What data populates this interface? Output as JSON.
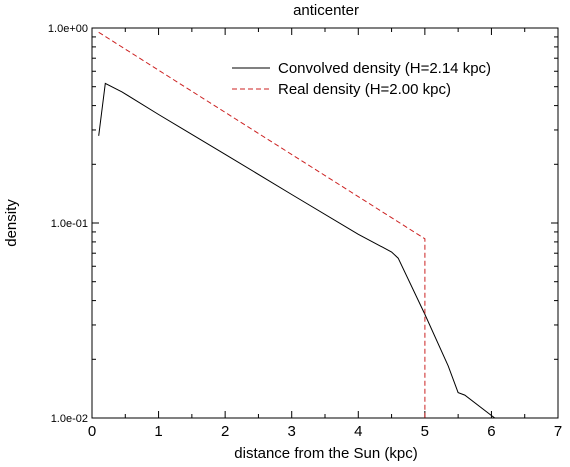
{
  "chart_data": {
    "type": "line",
    "title": "anticenter",
    "xlabel": "distance from the Sun (kpc)",
    "ylabel": "density",
    "xlim": [
      0,
      7
    ],
    "ylim": [
      0.01,
      1.0
    ],
    "yscale": "log",
    "grid": false,
    "legend_position": "top-right",
    "x_ticks": [
      0,
      1,
      2,
      3,
      4,
      5,
      6,
      7
    ],
    "x_tick_labels": [
      "0",
      "1",
      "2",
      "3",
      "4",
      "5",
      "6",
      "7"
    ],
    "y_ticks": [
      0.01,
      0.1,
      1.0
    ],
    "y_tick_labels": [
      "1.0e-02",
      "1.0e-01",
      "1.0e+00"
    ],
    "series": [
      {
        "name": "Convolved density (H=2.14 kpc)",
        "color": "#000000",
        "dash": "solid",
        "x": [
          0.1,
          0.2,
          0.45,
          1.0,
          2.0,
          3.0,
          4.0,
          4.5,
          4.6,
          5.0,
          5.35,
          5.5,
          5.6,
          6.0,
          6.05
        ],
        "y": [
          0.28,
          0.52,
          0.47,
          0.36,
          0.225,
          0.14,
          0.0875,
          0.071,
          0.066,
          0.034,
          0.0185,
          0.0135,
          0.0131,
          0.0103,
          0.01
        ]
      },
      {
        "name": "Real density (H=2.00 kpc)",
        "color": "#cc2222",
        "dash": "dashed",
        "x": [
          0.1,
          5.0,
          5.0
        ],
        "y": [
          0.95,
          0.083,
          0.01
        ]
      }
    ]
  }
}
